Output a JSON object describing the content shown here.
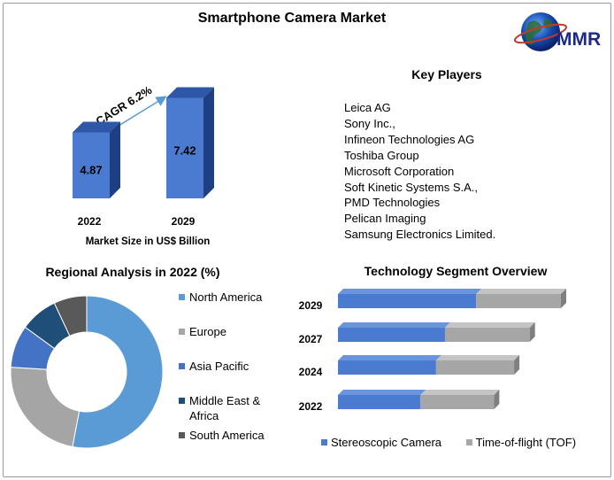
{
  "title": "Smartphone Camera Market",
  "logo": {
    "text": "MMR",
    "icon": "globe-icon"
  },
  "colors": {
    "blue": "#4a7bd0",
    "blue_dark": "#2e57a8",
    "gray": "#a6a6a6",
    "navy": "#1f4e79",
    "dark_gray": "#595959"
  },
  "chart_data": [
    {
      "type": "bar",
      "categories": [
        "2022",
        "2029"
      ],
      "values": [
        4.87,
        7.42
      ],
      "xlabel": "Market Size in US$ Billion",
      "annotation": "CAGR 6.2%"
    },
    {
      "type": "pie",
      "title": "Regional Analysis in 2022 (%)",
      "donut": true,
      "labels": [
        "North America",
        "Europe",
        "Asia Pacific",
        "Middle East & Africa",
        "South America"
      ],
      "values": [
        53,
        23,
        9,
        8,
        7
      ],
      "colors": [
        "#5b9bd5",
        "#a5a5a5",
        "#4472c4",
        "#1f4e79",
        "#595959"
      ]
    },
    {
      "type": "bar",
      "orientation": "horizontal",
      "stacked": true,
      "title": "Technology Segment Overview",
      "categories": [
        "2029",
        "2027",
        "2024",
        "2022"
      ],
      "series": [
        {
          "name": "Stereoscopic Camera",
          "values": [
            62,
            48,
            44,
            37
          ]
        },
        {
          "name": "Time-of-flight (TOF)",
          "values": [
            38,
            38,
            35,
            33
          ]
        }
      ]
    }
  ],
  "key_players": {
    "title": "Key Players",
    "items": [
      "Leica AG",
      "Sony Inc.,",
      "Infineon Technologies AG",
      "Toshiba Group",
      "Microsoft Corporation",
      "Soft Kinetic Systems S.A.,",
      "PMD Technologies",
      "Pelican Imaging",
      "Samsung Electronics Limited."
    ]
  }
}
